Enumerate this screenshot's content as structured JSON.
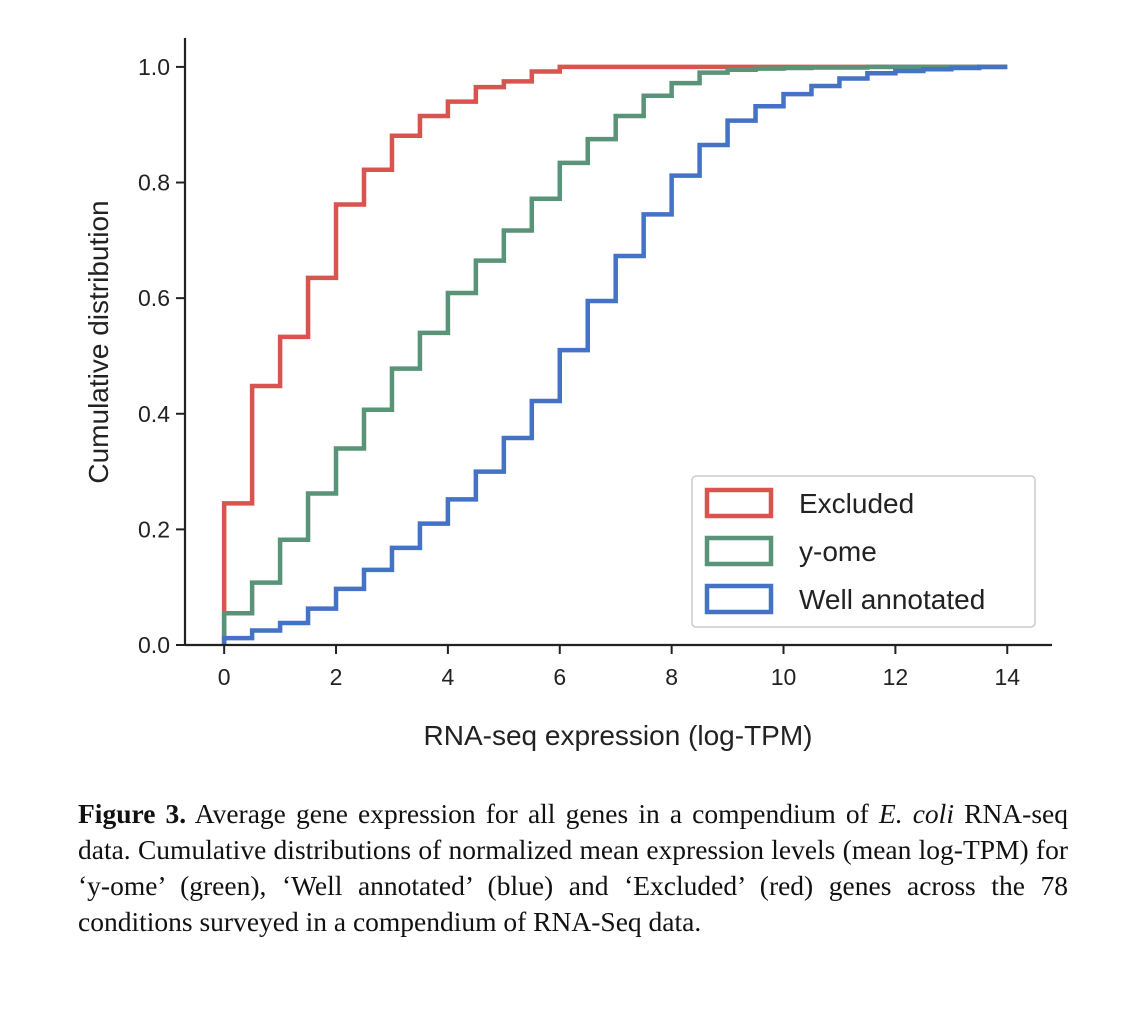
{
  "chart_data": {
    "type": "line",
    "step": true,
    "xlabel": "RNA-seq expression (log-TPM)",
    "ylabel": "Cumulative distribution",
    "xlim": [
      -0.7,
      14.8
    ],
    "ylim": [
      0.0,
      1.05
    ],
    "xticks": [
      0,
      2,
      4,
      6,
      8,
      10,
      12,
      14
    ],
    "yticks": [
      0.0,
      0.2,
      0.4,
      0.6,
      0.8,
      1.0
    ],
    "xtick_labels": [
      "0",
      "2",
      "4",
      "6",
      "8",
      "10",
      "12",
      "14"
    ],
    "ytick_labels": [
      "0.0",
      "0.2",
      "0.4",
      "0.6",
      "0.8",
      "1.0"
    ],
    "legend_position": "lower-right",
    "series": [
      {
        "name": "Excluded",
        "color": "#d9534f",
        "x": [
          0,
          0.5,
          1.0,
          1.5,
          2.0,
          2.5,
          3.0,
          3.5,
          4.0,
          4.5,
          5.0,
          5.5,
          6.0,
          14.0
        ],
        "y": [
          0.245,
          0.448,
          0.533,
          0.635,
          0.762,
          0.822,
          0.881,
          0.915,
          0.94,
          0.965,
          0.975,
          0.992,
          1.0,
          1.0
        ]
      },
      {
        "name": "y-ome",
        "color": "#5a9478",
        "x": [
          0,
          0.5,
          1.0,
          1.5,
          2.0,
          2.5,
          3.0,
          3.5,
          4.0,
          4.5,
          5.0,
          5.5,
          6.0,
          6.5,
          7.0,
          7.5,
          8.0,
          8.5,
          9.0,
          9.5,
          10.0,
          10.5,
          11.0,
          11.5,
          14.0
        ],
        "y": [
          0.055,
          0.108,
          0.182,
          0.262,
          0.34,
          0.407,
          0.478,
          0.54,
          0.609,
          0.665,
          0.717,
          0.772,
          0.834,
          0.875,
          0.915,
          0.95,
          0.972,
          0.99,
          0.995,
          0.997,
          0.998,
          0.999,
          0.999,
          1.0,
          1.0
        ]
      },
      {
        "name": "Well annotated",
        "color": "#4472c4",
        "x": [
          0,
          0.5,
          1.0,
          1.5,
          2.0,
          2.5,
          3.0,
          3.5,
          4.0,
          4.5,
          5.0,
          5.5,
          6.0,
          6.5,
          7.0,
          7.5,
          8.0,
          8.5,
          9.0,
          9.5,
          10.0,
          10.5,
          11.0,
          11.5,
          12.0,
          12.5,
          13.0,
          13.5,
          14.0
        ],
        "y": [
          0.012,
          0.025,
          0.038,
          0.063,
          0.097,
          0.13,
          0.168,
          0.21,
          0.252,
          0.3,
          0.358,
          0.422,
          0.51,
          0.595,
          0.673,
          0.745,
          0.812,
          0.865,
          0.907,
          0.932,
          0.953,
          0.967,
          0.98,
          0.989,
          0.993,
          0.996,
          0.998,
          1.0,
          1.0
        ]
      }
    ]
  },
  "caption": {
    "label": "Figure 3.",
    "part1": " Average gene expression for all genes in a compendium of ",
    "italic": "E. coli",
    "part2": " RNA-seq data. Cumulative distributions of normalized mean expression levels (mean log-TPM) for ‘y-ome’ (green), ‘Well annotated’ (blue) and ‘Excluded’ (red) genes across the 78 conditions surveyed in a compendium of RNA-Seq data."
  }
}
